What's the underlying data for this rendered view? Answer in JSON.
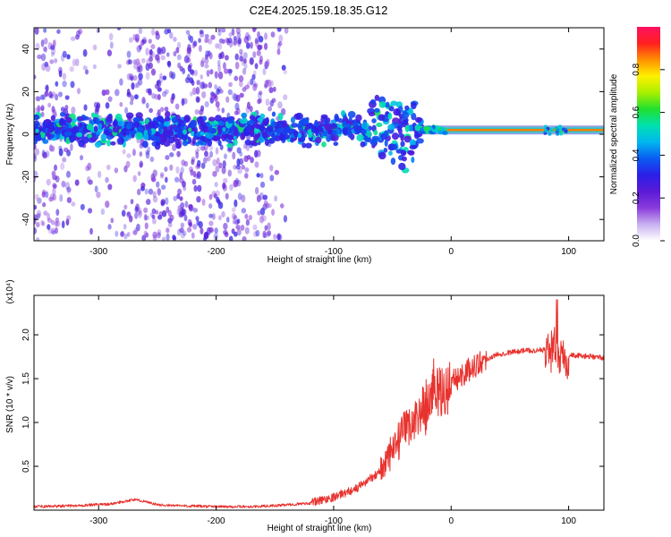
{
  "title": "C2E4.2025.159.18.35.G12",
  "chart_data": [
    {
      "type": "heatmap",
      "xlabel": "Height of straight line (km)",
      "ylabel": "Frequency (Hz)",
      "xlim": [
        -355,
        130
      ],
      "ylim": [
        -50,
        50
      ],
      "x_ticks": [
        -300,
        -200,
        -100,
        0,
        100
      ],
      "y_ticks": [
        -40,
        -20,
        0,
        20,
        40
      ],
      "colorbar": {
        "label": "Normalized spectral amplitude",
        "range": [
          0,
          1
        ],
        "ticks": [
          "0.0",
          "0.2",
          "0.4",
          "0.6",
          "0.8"
        ],
        "colors": [
          "#ffffff",
          "#c9b0f0",
          "#8a3bdc",
          "#5a1ad6",
          "#2b1fe8",
          "#0a5cf2",
          "#00b7f0",
          "#00e0b0",
          "#20e030",
          "#a8f000",
          "#fff000",
          "#ff9000",
          "#ff2020",
          "#ff1060"
        ]
      },
      "features": [
        {
          "name": "noisy band",
          "x_range": [
            -355,
            -140
          ],
          "freq_range": [
            -50,
            50
          ]
        },
        {
          "name": "main trace",
          "x_range": [
            -355,
            130
          ],
          "freq_center": 2
        },
        {
          "name": "strong signal",
          "x_range": [
            -25,
            130
          ],
          "freq_center": 2
        }
      ]
    },
    {
      "type": "line",
      "xlabel": "Height of straight line (km)",
      "ylabel": "SNR (10 * v/v)",
      "y_multiplier": "(x10⁴)",
      "xlim": [
        -355,
        130
      ],
      "ylim": [
        0,
        2.45
      ],
      "x_ticks": [
        -300,
        -200,
        -100,
        0,
        100
      ],
      "y_ticks": [
        "0.5",
        "1.0",
        "1.5",
        "2.0"
      ],
      "color": "#e8322e",
      "series": [
        {
          "x": [
            -355,
            -320,
            -290,
            -270,
            -260,
            -250,
            -230,
            -200,
            -170,
            -150,
            -120,
            -100,
            -80,
            -70,
            -60,
            -50,
            -40,
            -30,
            -20,
            -15,
            -10,
            -5,
            0,
            10,
            20,
            30,
            40,
            50,
            60,
            70,
            80,
            85,
            90,
            93,
            96,
            100,
            110,
            120,
            130
          ],
          "y": [
            0.04,
            0.05,
            0.07,
            0.12,
            0.1,
            0.06,
            0.05,
            0.04,
            0.04,
            0.05,
            0.08,
            0.15,
            0.25,
            0.35,
            0.45,
            0.65,
            0.9,
            1.05,
            1.2,
            1.45,
            1.3,
            1.35,
            1.45,
            1.55,
            1.65,
            1.72,
            1.78,
            1.8,
            1.82,
            1.82,
            1.83,
            1.82,
            1.8,
            1.78,
            1.78,
            1.77,
            1.76,
            1.75,
            1.74
          ]
        }
      ]
    }
  ]
}
